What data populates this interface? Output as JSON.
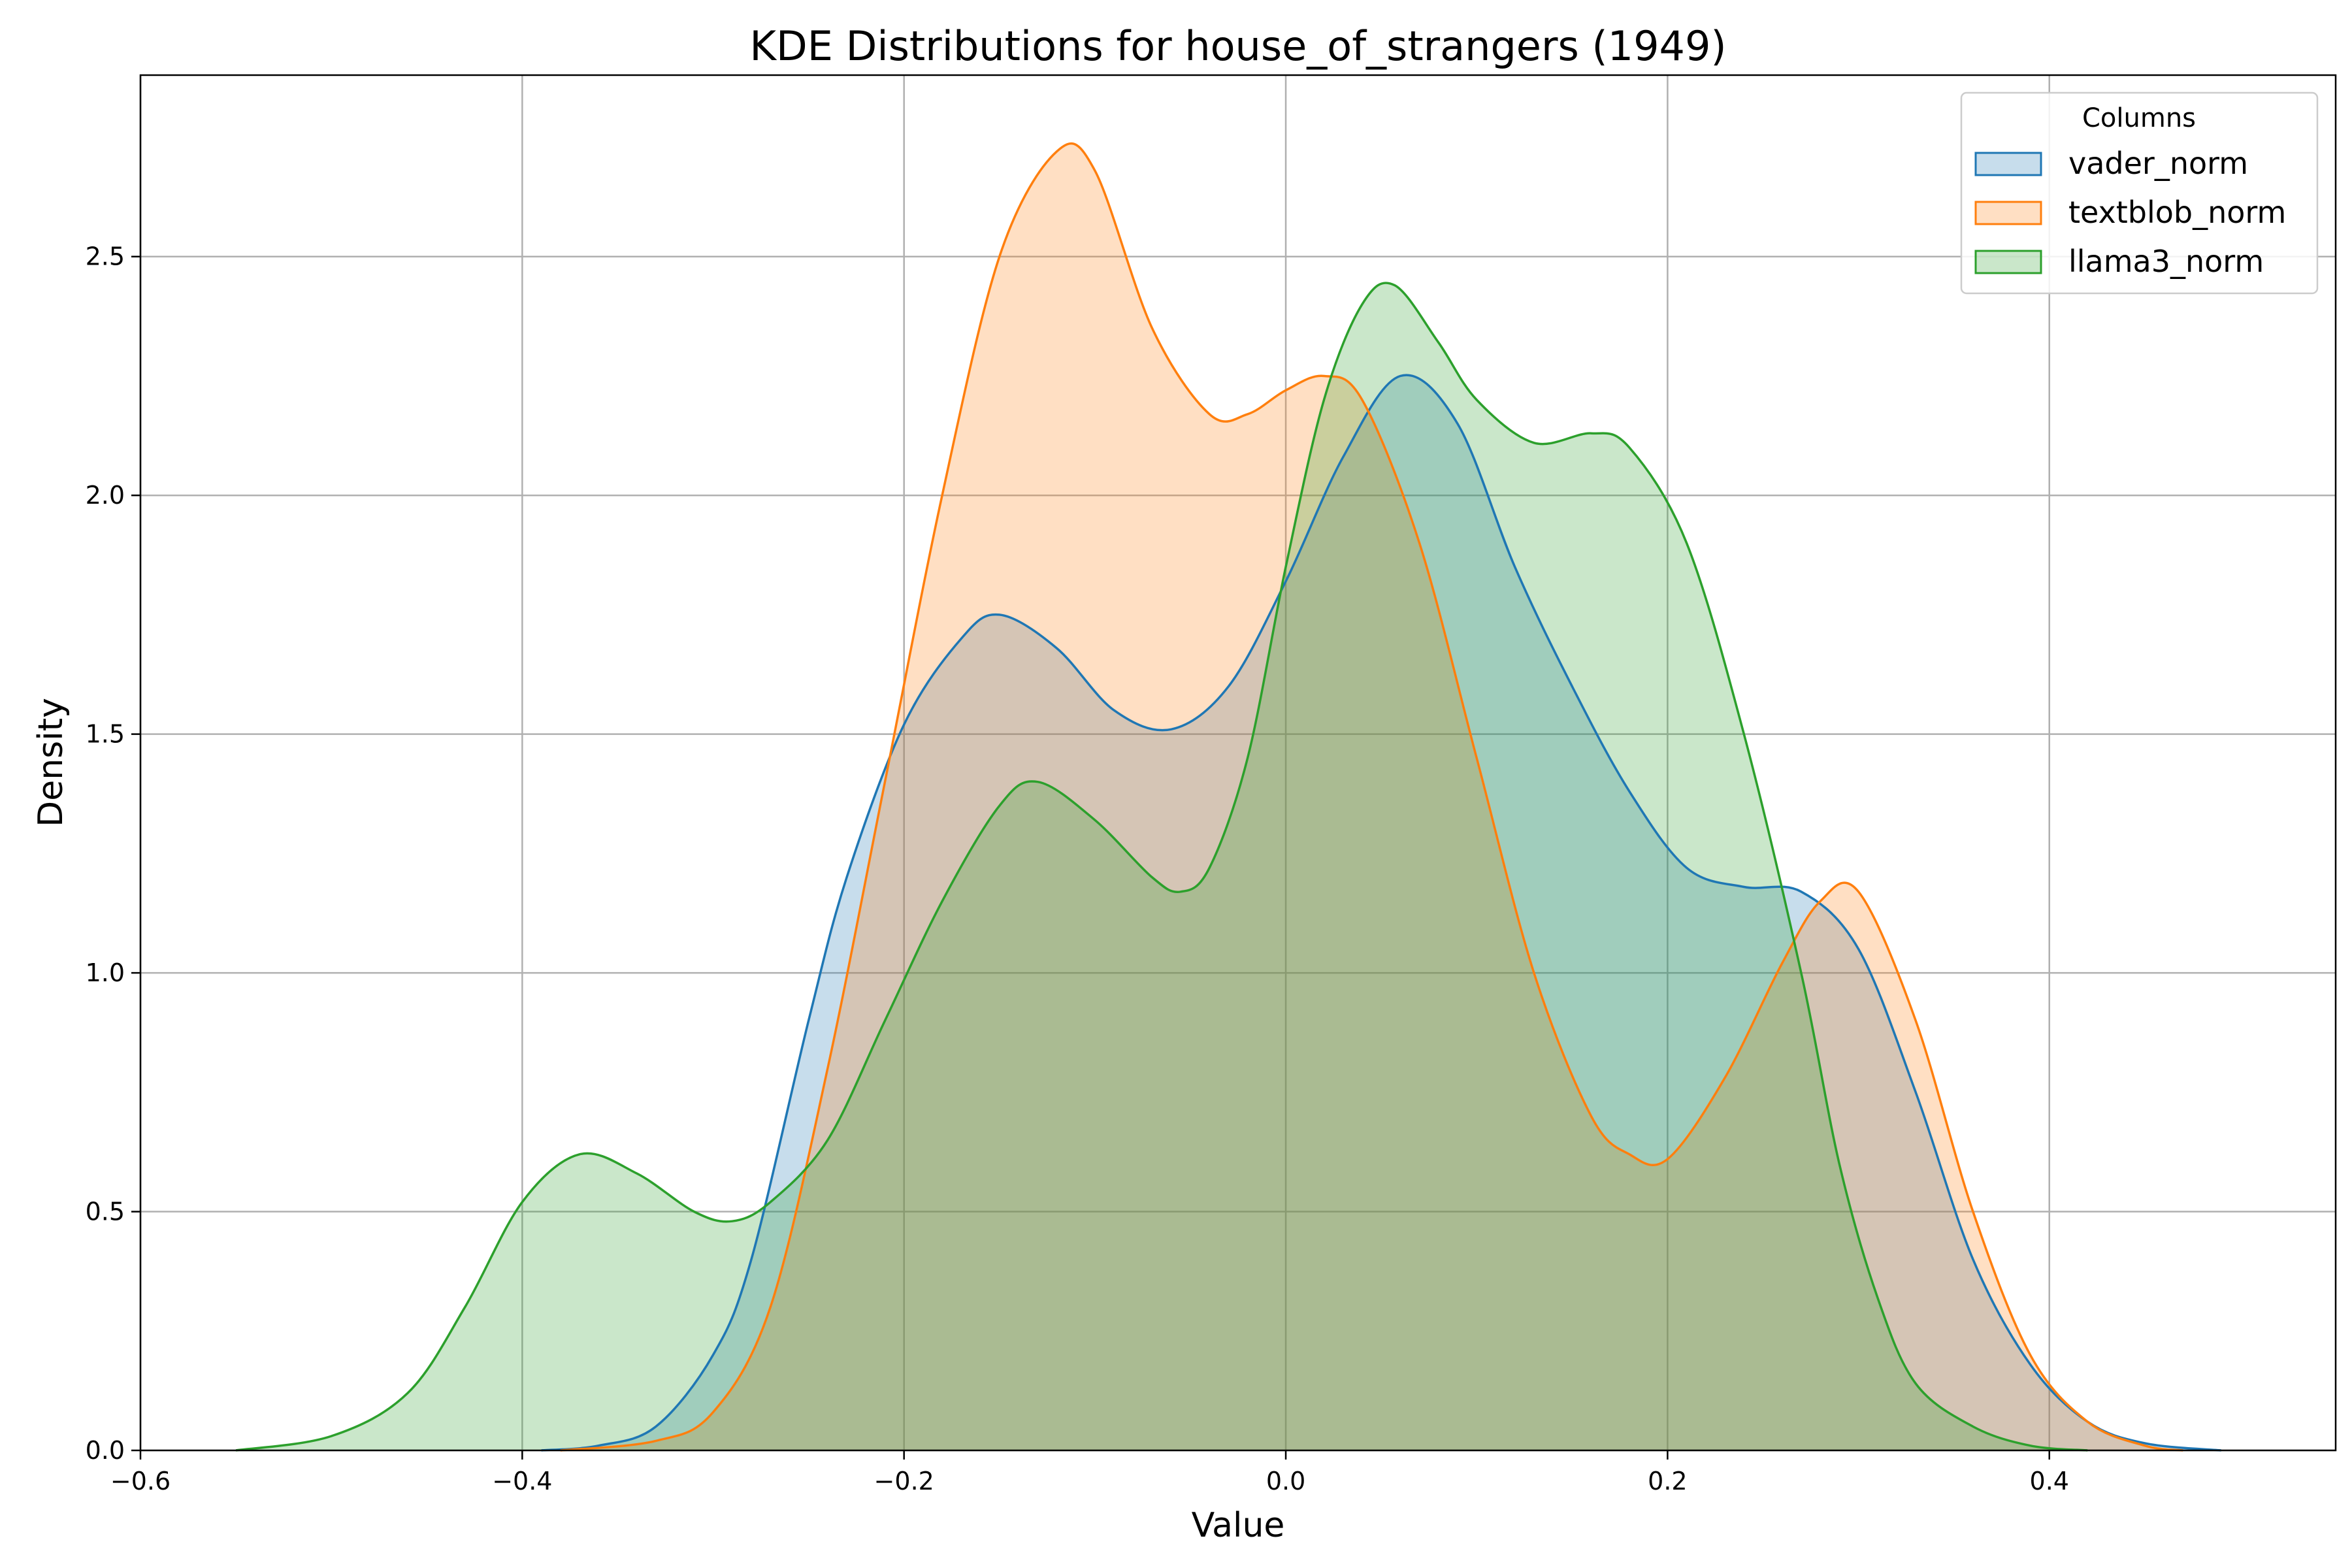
{
  "chart_data": {
    "type": "area",
    "title": "KDE Distributions for house_of_strangers (1949)",
    "xlabel": "Value",
    "ylabel": "Density",
    "xlim": [
      -0.6,
      0.55
    ],
    "ylim": [
      0,
      2.88
    ],
    "x_ticks": [
      -0.6,
      -0.4,
      -0.2,
      0.0,
      0.2,
      0.4
    ],
    "x_tick_labels": [
      "−0.6",
      "−0.4",
      "−0.2",
      "0.0",
      "0.2",
      "0.4"
    ],
    "y_ticks": [
      0.0,
      0.5,
      1.0,
      1.5,
      2.0,
      2.5
    ],
    "y_tick_labels": [
      "0.0",
      "0.5",
      "1.0",
      "1.5",
      "2.0",
      "2.5"
    ],
    "grid": true,
    "legend": {
      "title": "Columns",
      "position": "top-right"
    },
    "series": [
      {
        "name": "vader_norm",
        "color": "#1f77b4",
        "points": [
          [
            -0.39,
            0.0
          ],
          [
            -0.36,
            0.01
          ],
          [
            -0.33,
            0.05
          ],
          [
            -0.3,
            0.2
          ],
          [
            -0.28,
            0.4
          ],
          [
            -0.25,
            0.9
          ],
          [
            -0.23,
            1.2
          ],
          [
            -0.2,
            1.52
          ],
          [
            -0.17,
            1.7
          ],
          [
            -0.15,
            1.75
          ],
          [
            -0.12,
            1.68
          ],
          [
            -0.09,
            1.55
          ],
          [
            -0.06,
            1.51
          ],
          [
            -0.03,
            1.6
          ],
          [
            0.0,
            1.82
          ],
          [
            0.03,
            2.08
          ],
          [
            0.06,
            2.25
          ],
          [
            0.09,
            2.15
          ],
          [
            0.12,
            1.85
          ],
          [
            0.15,
            1.6
          ],
          [
            0.18,
            1.38
          ],
          [
            0.21,
            1.22
          ],
          [
            0.24,
            1.18
          ],
          [
            0.27,
            1.17
          ],
          [
            0.3,
            1.05
          ],
          [
            0.33,
            0.75
          ],
          [
            0.36,
            0.4
          ],
          [
            0.39,
            0.18
          ],
          [
            0.42,
            0.06
          ],
          [
            0.45,
            0.015
          ],
          [
            0.49,
            0.0
          ]
        ]
      },
      {
        "name": "textblob_norm",
        "color": "#ff7f0e",
        "points": [
          [
            -0.38,
            0.0
          ],
          [
            -0.33,
            0.02
          ],
          [
            -0.3,
            0.08
          ],
          [
            -0.27,
            0.3
          ],
          [
            -0.24,
            0.8
          ],
          [
            -0.21,
            1.4
          ],
          [
            -0.18,
            2.0
          ],
          [
            -0.15,
            2.5
          ],
          [
            -0.12,
            2.72
          ],
          [
            -0.1,
            2.68
          ],
          [
            -0.07,
            2.35
          ],
          [
            -0.04,
            2.17
          ],
          [
            -0.02,
            2.17
          ],
          [
            0.0,
            2.22
          ],
          [
            0.02,
            2.25
          ],
          [
            0.04,
            2.2
          ],
          [
            0.07,
            1.9
          ],
          [
            0.1,
            1.45
          ],
          [
            0.13,
            1.0
          ],
          [
            0.16,
            0.7
          ],
          [
            0.18,
            0.62
          ],
          [
            0.2,
            0.61
          ],
          [
            0.23,
            0.78
          ],
          [
            0.26,
            1.02
          ],
          [
            0.28,
            1.15
          ],
          [
            0.3,
            1.17
          ],
          [
            0.33,
            0.9
          ],
          [
            0.36,
            0.5
          ],
          [
            0.39,
            0.2
          ],
          [
            0.42,
            0.06
          ],
          [
            0.45,
            0.01
          ],
          [
            0.47,
            0.0
          ]
        ]
      },
      {
        "name": "llama3_norm",
        "color": "#2ca02c",
        "points": [
          [
            -0.55,
            0.0
          ],
          [
            -0.5,
            0.03
          ],
          [
            -0.46,
            0.12
          ],
          [
            -0.43,
            0.3
          ],
          [
            -0.4,
            0.52
          ],
          [
            -0.37,
            0.62
          ],
          [
            -0.34,
            0.58
          ],
          [
            -0.31,
            0.5
          ],
          [
            -0.29,
            0.48
          ],
          [
            -0.27,
            0.52
          ],
          [
            -0.24,
            0.65
          ],
          [
            -0.21,
            0.9
          ],
          [
            -0.18,
            1.15
          ],
          [
            -0.15,
            1.35
          ],
          [
            -0.13,
            1.4
          ],
          [
            -0.1,
            1.32
          ],
          [
            -0.07,
            1.2
          ],
          [
            -0.055,
            1.17
          ],
          [
            -0.04,
            1.22
          ],
          [
            -0.02,
            1.45
          ],
          [
            0.0,
            1.85
          ],
          [
            0.02,
            2.2
          ],
          [
            0.04,
            2.4
          ],
          [
            0.057,
            2.44
          ],
          [
            0.08,
            2.32
          ],
          [
            0.1,
            2.2
          ],
          [
            0.13,
            2.11
          ],
          [
            0.16,
            2.13
          ],
          [
            0.18,
            2.1
          ],
          [
            0.21,
            1.9
          ],
          [
            0.24,
            1.5
          ],
          [
            0.27,
            1.0
          ],
          [
            0.29,
            0.6
          ],
          [
            0.31,
            0.32
          ],
          [
            0.33,
            0.14
          ],
          [
            0.36,
            0.05
          ],
          [
            0.39,
            0.01
          ],
          [
            0.42,
            0.0
          ]
        ]
      }
    ]
  }
}
